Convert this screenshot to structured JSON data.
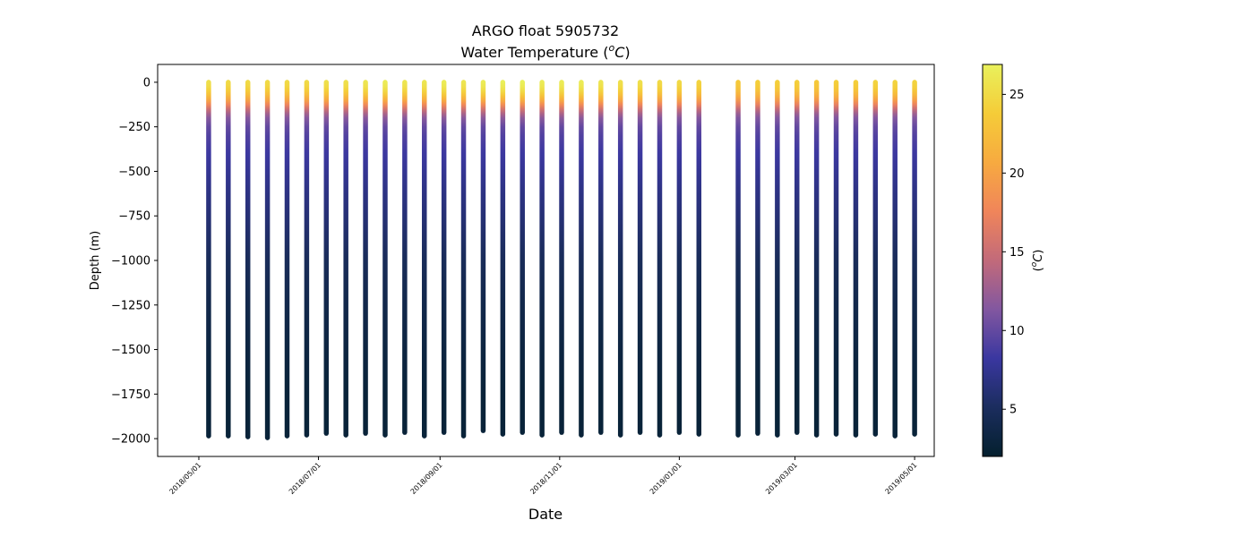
{
  "chart_data": {
    "type": "scatter",
    "title": "ARGO float 5905732",
    "subtitle_prefix": "Water Temperature (",
    "subtitle_unit_base": "o",
    "subtitle_unit_letter": "C",
    "subtitle_suffix": ")",
    "xlabel": "Date",
    "ylabel": "Depth (m)",
    "colorbar_label_prefix": "(",
    "colorbar_label_base": "o",
    "colorbar_label_letter": "C",
    "colorbar_label_suffix": ")",
    "colormap": "thermal",
    "colormap_stops": [
      "#04202e",
      "#1b2d5e",
      "#3a37a0",
      "#8257a0",
      "#c26a7a",
      "#f0855a",
      "#f7aa40",
      "#f5cc38",
      "#e9f15c"
    ],
    "xlim": [
      "2018-04-10",
      "2019-05-11"
    ],
    "ylim": [
      -2100,
      100
    ],
    "clim": [
      2.0,
      26.9
    ],
    "xticks": [
      "2018-05-01",
      "2018-07-01",
      "2018-09-01",
      "2018-11-01",
      "2019-01-01",
      "2019-03-01",
      "2019-05-01"
    ],
    "xtick_labels": [
      "2018/05/01",
      "2018/07/01",
      "2018/09/01",
      "2018/11/01",
      "2019/01/01",
      "2019/03/01",
      "2019/05/01"
    ],
    "yticks": [
      0,
      -250,
      -500,
      -750,
      -1000,
      -1250,
      -1500,
      -1750,
      -2000
    ],
    "ytick_labels": [
      "0",
      "−250",
      "−500",
      "−750",
      "−1000",
      "−1250",
      "−1500",
      "−1750",
      "−2000"
    ],
    "cticks": [
      5,
      10,
      15,
      20,
      25
    ],
    "ctick_labels": [
      "5",
      "10",
      "15",
      "20",
      "25"
    ],
    "temperature_profile": {
      "depth": [
        0,
        -25,
        -50,
        -75,
        -100,
        -125,
        -150,
        -175,
        -200,
        -250,
        -300,
        -400,
        -500,
        -600,
        -750,
        -1000,
        -1250,
        -1500,
        -1750,
        -2000
      ],
      "temperature": [
        25.0,
        24.5,
        23.5,
        22.0,
        20.0,
        17.5,
        15.0,
        13.0,
        11.5,
        10.0,
        9.2,
        8.3,
        7.6,
        7.0,
        6.2,
        4.8,
        3.9,
        3.2,
        2.7,
        2.2
      ]
    },
    "profiles": [
      {
        "date": "2018-05-06",
        "max_depth": -1985,
        "surface_temp": 25.5
      },
      {
        "date": "2018-05-16",
        "max_depth": -1985,
        "surface_temp": 25.0
      },
      {
        "date": "2018-05-26",
        "max_depth": -1990,
        "surface_temp": 25.0
      },
      {
        "date": "2018-06-05",
        "max_depth": -1995,
        "surface_temp": 25.0
      },
      {
        "date": "2018-06-15",
        "max_depth": -1985,
        "surface_temp": 25.0
      },
      {
        "date": "2018-06-25",
        "max_depth": -1980,
        "surface_temp": 25.0
      },
      {
        "date": "2018-07-05",
        "max_depth": -1970,
        "surface_temp": 25.5
      },
      {
        "date": "2018-07-15",
        "max_depth": -1980,
        "surface_temp": 25.5
      },
      {
        "date": "2018-07-25",
        "max_depth": -1970,
        "surface_temp": 26.0
      },
      {
        "date": "2018-08-04",
        "max_depth": -1980,
        "surface_temp": 26.5
      },
      {
        "date": "2018-08-14",
        "max_depth": -1965,
        "surface_temp": 26.0
      },
      {
        "date": "2018-08-24",
        "max_depth": -1985,
        "surface_temp": 26.0
      },
      {
        "date": "2018-09-03",
        "max_depth": -1965,
        "surface_temp": 26.5
      },
      {
        "date": "2018-09-13",
        "max_depth": -1985,
        "surface_temp": 26.0
      },
      {
        "date": "2018-09-23",
        "max_depth": -1955,
        "surface_temp": 26.5
      },
      {
        "date": "2018-10-03",
        "max_depth": -1975,
        "surface_temp": 26.8
      },
      {
        "date": "2018-10-13",
        "max_depth": -1965,
        "surface_temp": 26.9
      },
      {
        "date": "2018-10-23",
        "max_depth": -1980,
        "surface_temp": 26.5
      },
      {
        "date": "2018-11-02",
        "max_depth": -1965,
        "surface_temp": 26.5
      },
      {
        "date": "2018-11-12",
        "max_depth": -1980,
        "surface_temp": 26.5
      },
      {
        "date": "2018-11-22",
        "max_depth": -1965,
        "surface_temp": 26.0
      },
      {
        "date": "2018-12-02",
        "max_depth": -1980,
        "surface_temp": 25.5
      },
      {
        "date": "2018-12-12",
        "max_depth": -1965,
        "surface_temp": 25.5
      },
      {
        "date": "2018-12-22",
        "max_depth": -1980,
        "surface_temp": 25.0
      },
      {
        "date": "2019-01-01",
        "max_depth": -1965,
        "surface_temp": 25.0
      },
      {
        "date": "2019-01-11",
        "max_depth": -1975,
        "surface_temp": 24.5
      },
      {
        "date": "2019-01-31",
        "max_depth": -1980,
        "surface_temp": 23.5
      },
      {
        "date": "2019-02-10",
        "max_depth": -1970,
        "surface_temp": 24.0
      },
      {
        "date": "2019-02-20",
        "max_depth": -1980,
        "surface_temp": 24.0
      },
      {
        "date": "2019-03-02",
        "max_depth": -1965,
        "surface_temp": 24.0
      },
      {
        "date": "2019-03-12",
        "max_depth": -1980,
        "surface_temp": 23.5
      },
      {
        "date": "2019-03-22",
        "max_depth": -1975,
        "surface_temp": 24.0
      },
      {
        "date": "2019-04-01",
        "max_depth": -1980,
        "surface_temp": 24.0
      },
      {
        "date": "2019-04-11",
        "max_depth": -1975,
        "surface_temp": 24.5
      },
      {
        "date": "2019-04-21",
        "max_depth": -1985,
        "surface_temp": 24.5
      },
      {
        "date": "2019-05-01",
        "max_depth": -1975,
        "surface_temp": 24.5
      }
    ]
  }
}
